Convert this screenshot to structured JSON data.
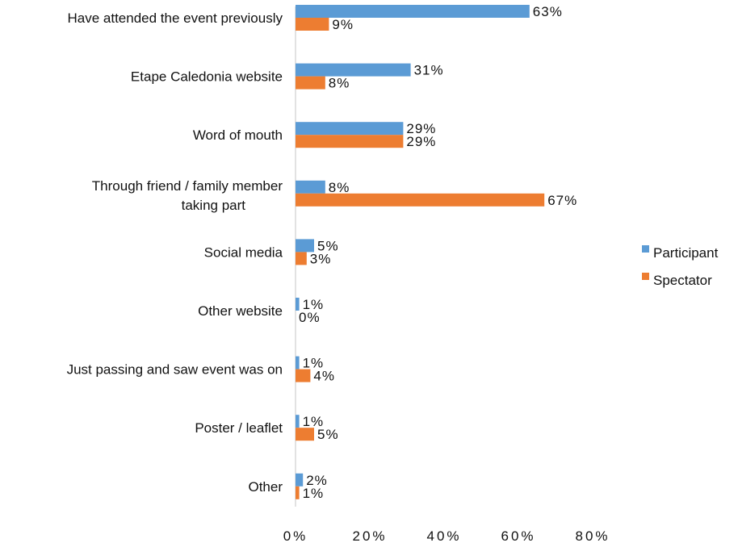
{
  "chart_data": {
    "type": "bar",
    "orientation": "horizontal",
    "categories": [
      "Have attended the event previously",
      "Etape Caledonia website",
      "Word of mouth",
      "Through friend / family member taking part",
      "Social media",
      "Other website",
      "Just passing and saw event was on",
      "Poster / leaflet",
      "Other"
    ],
    "series": [
      {
        "name": "Participant",
        "color": "#5b9bd5",
        "values": [
          63,
          31,
          29,
          8,
          5,
          1,
          1,
          1,
          2
        ],
        "labels": [
          "63%",
          "31%",
          "29%",
          "8%",
          "5%",
          "1%",
          "1%",
          "1%",
          "2%"
        ]
      },
      {
        "name": "Spectator",
        "color": "#ed7d31",
        "values": [
          9,
          8,
          29,
          67,
          3,
          0,
          4,
          5,
          1
        ],
        "labels": [
          "9%",
          "8%",
          "29%",
          "67%",
          "3%",
          "0%",
          "4%",
          "5%",
          "1%"
        ]
      }
    ],
    "xticks": [
      "0%",
      "20%",
      "40%",
      "60%",
      "80%"
    ],
    "xlim": [
      0,
      80
    ],
    "grid": false,
    "legend": "right",
    "title": "",
    "xlabel": "",
    "ylabel": ""
  }
}
